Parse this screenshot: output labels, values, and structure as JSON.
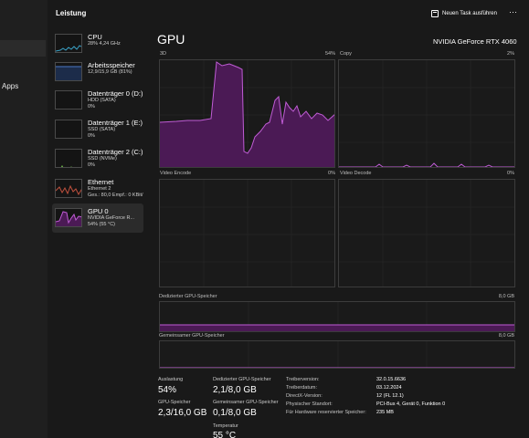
{
  "nav": {
    "apps_label": "Apps"
  },
  "header": {
    "title": "Leistung",
    "run_task_label": "Neuen Task ausführen",
    "more_label": "···"
  },
  "devices": [
    {
      "name": "CPU",
      "line1": "28% 4,24 GHz",
      "line2": ""
    },
    {
      "name": "Arbeitsspeicher",
      "line1": "12,9/15,9 GB (81%)",
      "line2": ""
    },
    {
      "name": "Datenträger 0 (D:)",
      "line1": "HDD (SATA)",
      "line2": "0%"
    },
    {
      "name": "Datenträger 1 (E:)",
      "line1": "SSD (SATA)",
      "line2": "0%"
    },
    {
      "name": "Datenträger 2 (C:)",
      "line1": "SSD (NVMe)",
      "line2": "0%"
    },
    {
      "name": "Ethernet",
      "line1": "Ethernet 2",
      "line2": "Ges.: 80,0 Empf.: 0 KBit/"
    },
    {
      "name": "GPU 0",
      "line1": "NVIDIA GeForce R...",
      "line2": "54% (55 °C)"
    }
  ],
  "gpu": {
    "heading": "GPU",
    "model": "NVIDIA GeForce RTX 4060",
    "engines": [
      {
        "name": "3D",
        "percent": "54%"
      },
      {
        "name": "Copy",
        "percent": "2%"
      },
      {
        "name": "Video Encode",
        "percent": "0%"
      },
      {
        "name": "Video Decode",
        "percent": "0%"
      }
    ],
    "dedicated_memory": {
      "label": "Dedizierter GPU-Speicher",
      "max": "8,0 GB"
    },
    "shared_memory": {
      "label": "Gemeinsamer GPU-Speicher",
      "max": "8,0 GB"
    },
    "stats": {
      "auslastung_label": "Auslastung",
      "auslastung": "54%",
      "dedicated_label": "Dedizierter GPU-Speicher",
      "dedicated": "2,1/8,0 GB",
      "gpu_mem_label": "GPU-Speicher",
      "gpu_mem": "2,3/16,0 GB",
      "shared_label": "Gemeinsamer GPU-Speicher",
      "shared": "0,1/8,0 GB",
      "temp_label": "Temperatur",
      "temp": "55 °C"
    },
    "info": [
      {
        "label": "Treiberversion:",
        "value": "32.0.15.6636"
      },
      {
        "label": "Treiberdatum:",
        "value": "03.12.2024"
      },
      {
        "label": "DirectX-Version:",
        "value": "12 (FL 12.1)"
      },
      {
        "label": "Physischer Standort:",
        "value": "PCI-Bus 4, Gerät 0, Funktion 0"
      },
      {
        "label": "Für Hardware reservierter Speicher:",
        "value": "235 MB"
      }
    ]
  },
  "colors": {
    "gpu_line": "#c05cd6",
    "gpu_fill": "#4b1a55",
    "cpu_line": "#3aa3c8",
    "mem_line": "#4a78c8",
    "disk_line": "#6fbf4a",
    "eth_line": "#c0513e"
  }
}
